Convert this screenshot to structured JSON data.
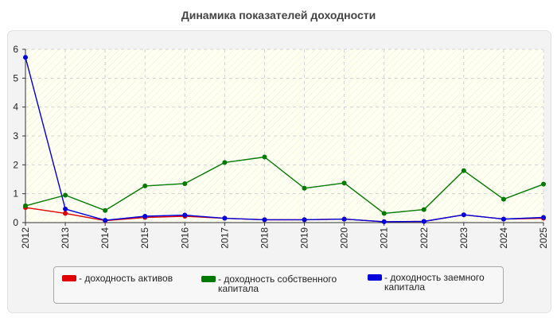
{
  "chart_data": {
    "type": "line",
    "title": "Динамика показателей доходности",
    "categories": [
      "2012",
      "2013",
      "2014",
      "2015",
      "2016",
      "2017",
      "2018",
      "2019",
      "2020",
      "2021",
      "2022",
      "2023",
      "2024",
      "2025"
    ],
    "ylim": [
      0,
      6
    ],
    "yticks": [
      "0",
      "1",
      "2",
      "3",
      "4",
      "5",
      "6"
    ],
    "grid": true,
    "legend_position": "bottom",
    "series": [
      {
        "name": "- доходность активов",
        "color": "#e00000",
        "values": [
          0.52,
          0.32,
          0.07,
          0.18,
          0.22,
          0.15,
          0.1,
          0.1,
          0.12,
          0.03,
          0.04,
          0.27,
          0.12,
          0.15
        ]
      },
      {
        "name": "- доходность собственного капитала",
        "color": "#007a00",
        "values": [
          0.58,
          0.95,
          0.42,
          1.27,
          1.35,
          2.08,
          2.27,
          1.19,
          1.37,
          0.32,
          0.45,
          1.8,
          0.81,
          1.33
        ]
      },
      {
        "name": "- доходность заемного капитала",
        "color": "#0000dd",
        "values": [
          5.72,
          0.47,
          0.08,
          0.22,
          0.26,
          0.15,
          0.1,
          0.1,
          0.12,
          0.03,
          0.04,
          0.27,
          0.12,
          0.18
        ]
      }
    ]
  }
}
